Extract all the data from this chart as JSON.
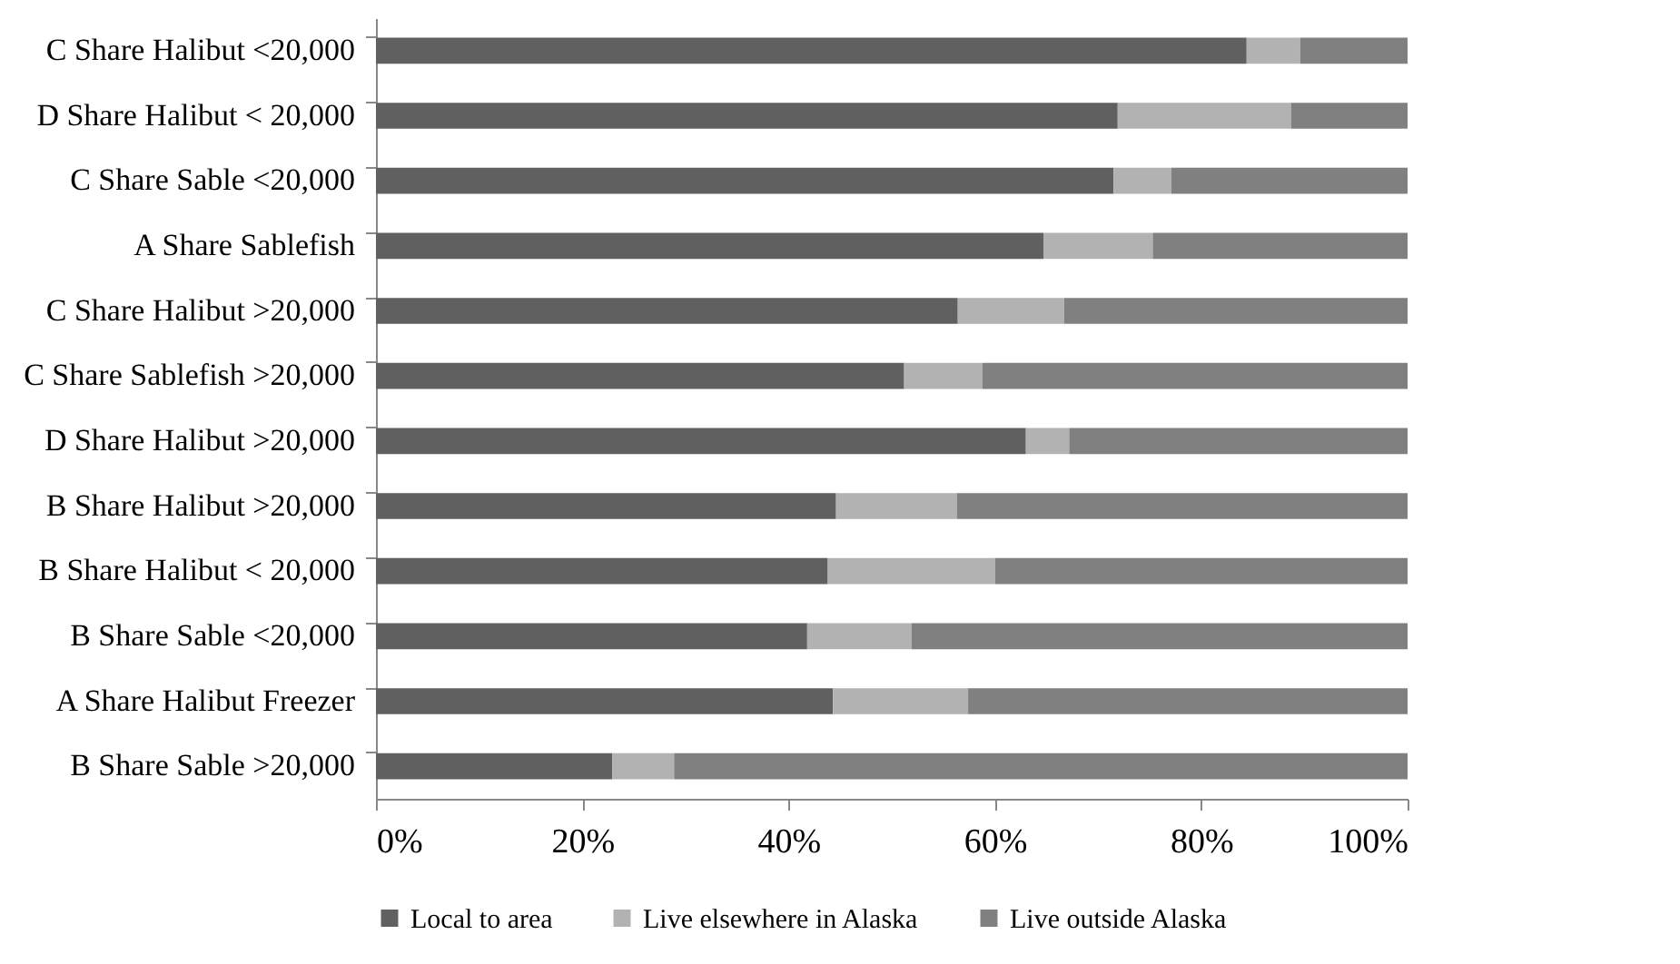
{
  "chart_data": {
    "type": "bar",
    "orientation": "horizontal",
    "stacked": true,
    "categories": [
      "C Share  Halibut <20,000",
      "D Share Halibut < 20,000",
      "C Share Sable <20,000",
      "A  Share Sablefish",
      "C Share Halibut >20,000",
      "C  Share Sablefish >20,000",
      "D Share Halibut >20,000",
      "B Share Halibut >20,000",
      "B Share Halibut < 20,000",
      "B Share Sable <20,000",
      "A Share Halibut Freezer",
      "B Share Sable >20,000"
    ],
    "series": [
      {
        "name": "Local to area",
        "color": "#606060",
        "values": [
          84.4,
          71.9,
          71.5,
          64.7,
          56.4,
          51.2,
          63.0,
          44.6,
          43.8,
          41.8,
          44.3,
          22.9
        ]
      },
      {
        "name": "Live elsewhere in Alaska",
        "color": "#b2b2b2",
        "values": [
          5.2,
          16.8,
          5.6,
          10.6,
          10.3,
          7.6,
          4.2,
          11.7,
          16.2,
          10.1,
          13.1,
          6.0
        ]
      },
      {
        "name": "Live outside Alaska",
        "color": "#808080",
        "values": [
          10.4,
          11.3,
          22.9,
          24.7,
          33.3,
          41.2,
          32.8,
          43.7,
          40.0,
          48.1,
          42.6,
          71.1
        ]
      }
    ],
    "xlim": [
      0,
      100
    ],
    "xticks": [
      {
        "value": 0,
        "label": "0%"
      },
      {
        "value": 20,
        "label": "20%"
      },
      {
        "value": 40,
        "label": "40%"
      },
      {
        "value": 60,
        "label": "60%"
      },
      {
        "value": 80,
        "label": "80%"
      },
      {
        "value": 100,
        "label": "100%"
      }
    ],
    "legend": "bottom"
  }
}
